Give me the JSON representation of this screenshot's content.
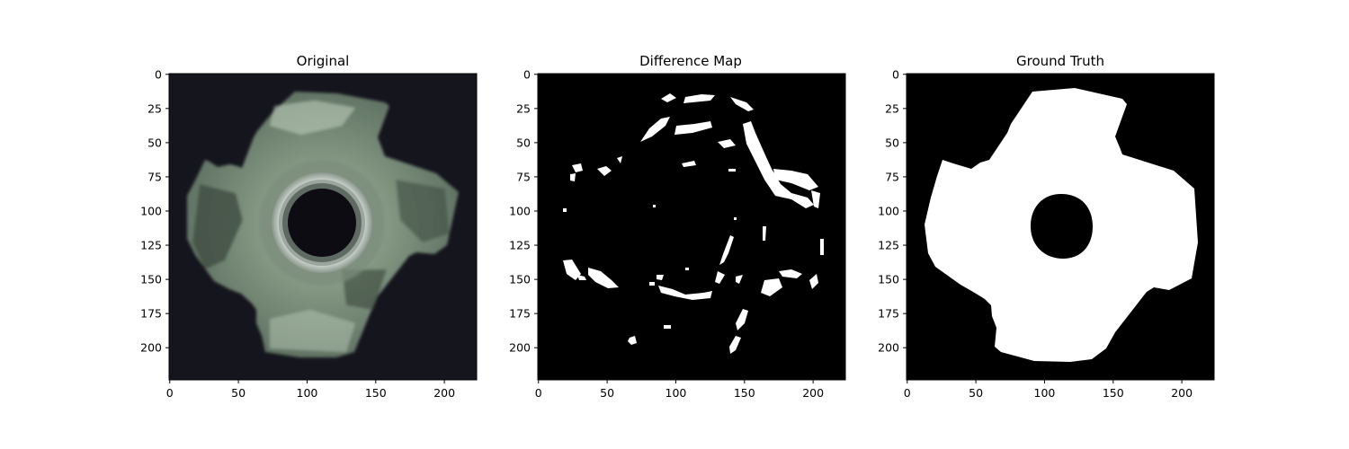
{
  "figure": {
    "panels": [
      {
        "id": "original",
        "title": "Original",
        "content": "photo of a metal four-prong tee nut with a central threaded hole on a dark background"
      },
      {
        "id": "difference",
        "title": "Difference Map",
        "content": "binary map: scattered white blobs on black"
      },
      {
        "id": "ground_truth",
        "title": "Ground Truth",
        "content": "binary mask: white four-lobed nut shape with a black central hole on black"
      }
    ],
    "x_ticks": [
      "0",
      "50",
      "100",
      "150",
      "200"
    ],
    "y_ticks": [
      "0",
      "25",
      "50",
      "75",
      "100",
      "125",
      "150",
      "175",
      "200"
    ],
    "axis_range": [
      0,
      224
    ],
    "colors": {
      "image_bg": "#15151d",
      "metal_dark": "#4a5a4c",
      "metal_mid": "#7e927e",
      "metal_light": "#b5c6b2",
      "mask_white": "#ffffff",
      "mask_black": "#000000"
    }
  }
}
